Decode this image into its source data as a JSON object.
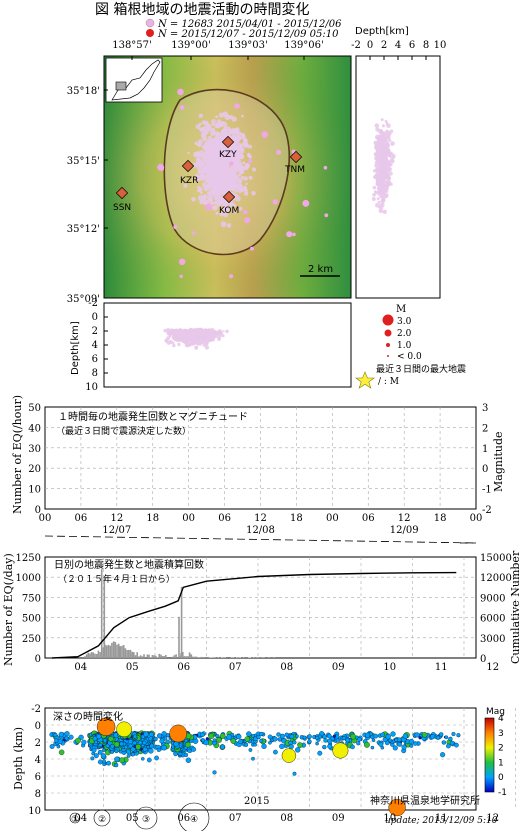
{
  "header": {
    "title": "図 箱根地域の地震活動の時間変化",
    "legend_lines": [
      {
        "label": "N = 12683 2015/04/01 - 2015/12/06",
        "color": "#e8b5e0"
      },
      {
        "label": "N =       2015/12/07 - 2015/12/09 05:10",
        "color": "#e02020"
      }
    ]
  },
  "map": {
    "lon_ticks": [
      "138°57'",
      "139°00'",
      "139°03'",
      "139°06'"
    ],
    "lat_ticks": [
      "35°18'",
      "35°15'",
      "35°12'",
      "35°09'"
    ],
    "stations": [
      "KZY",
      "KZR",
      "KOM",
      "TNM",
      "SSN"
    ],
    "scale_label": "2 km"
  },
  "depth_panels": {
    "right_title": "Depth[km]",
    "right_ticks": [
      "-2",
      "0",
      "2",
      "4",
      "6",
      "8",
      "10"
    ],
    "bottom_ylabel": "Depth[km]",
    "bottom_ticks": [
      "-2",
      "0",
      "2",
      "4",
      "6",
      "8",
      "10"
    ]
  },
  "mag_legend": {
    "title": "M",
    "items": [
      "3.0",
      "2.0",
      "1.0",
      "< 0.0"
    ],
    "max_eq_label": "最近３日間の最大地震",
    "max_eq_sub": "/ : M"
  },
  "hourly_chart": {
    "title": "１時間毎の地震発生回数とマグニチュード",
    "subtitle": "（最近３日間で震源決定した数）",
    "ylabel": "Number of EQ(/hour)",
    "y2label": "Magnitude",
    "yticks": [
      "50",
      "40",
      "30",
      "20",
      "10",
      "0"
    ],
    "y2ticks": [
      "3",
      "2",
      "1",
      "0",
      "-1",
      "-2"
    ],
    "xticks": [
      "00",
      "06",
      "12",
      "18",
      "00",
      "06",
      "12",
      "18",
      "00",
      "06",
      "12",
      "18",
      "00"
    ],
    "dates": [
      "12/07",
      "12/08",
      "12/09"
    ]
  },
  "daily_chart": {
    "title": "日別の地震発生数と地震積算回数",
    "subtitle": "（２０１５年４月１日から）",
    "ylabel": "Number of EQ(/day)",
    "y2label": "Cumulative Number",
    "yticks": [
      "1250",
      "1000",
      "750",
      "500",
      "250",
      "0"
    ],
    "y2ticks": [
      "15000",
      "12000",
      "9000",
      "6000",
      "3000",
      "0"
    ],
    "months": [
      "04",
      "05",
      "06",
      "07",
      "08",
      "09",
      "10",
      "11",
      "12"
    ]
  },
  "depth_time_chart": {
    "title": "深さの時間変化",
    "ylabel": "Depth (km)",
    "yticks": [
      "-2",
      "0",
      "2",
      "4",
      "6",
      "8",
      "10"
    ],
    "months": [
      "04",
      "05",
      "06",
      "07",
      "08",
      "09",
      "10",
      "11",
      "12"
    ],
    "year": "2015",
    "colorbar_title": "Mag",
    "colorbar_ticks": [
      "4",
      "3",
      "2",
      "1",
      "0",
      "-1"
    ],
    "size_legend": [
      "①",
      "②",
      "③",
      "④"
    ]
  },
  "footer": {
    "org": "神奈川県温泉地学研究所",
    "update": "update; 2015/12/09 5:10"
  },
  "chart_data": [
    {
      "type": "scatter",
      "title": "１時間毎の地震発生回数とマグニチュード",
      "xlabel": "",
      "ylabel": "Number of EQ(/hour)",
      "ylim": [
        0,
        50
      ],
      "series": []
    },
    {
      "type": "bar",
      "title": "日別の地震発生数と地震積算回数",
      "ylabel": "Number of EQ(/day)",
      "ylim": [
        0,
        1250
      ],
      "y2label": "Cumulative Number",
      "y2lim": [
        0,
        15000
      ],
      "months": [
        "04",
        "05",
        "06",
        "07",
        "08",
        "09",
        "10",
        "11",
        "12"
      ],
      "daily_peaks": [
        {
          "month_pos": 0.95,
          "value": 1100
        },
        {
          "month_pos": 1.0,
          "value": 1000
        },
        {
          "month_pos": 2.5,
          "value": 880
        },
        {
          "month_pos": 2.45,
          "value": 510
        }
      ],
      "cumulative": [
        {
          "month_pos": 0.0,
          "value": 0
        },
        {
          "month_pos": 0.5,
          "value": 200
        },
        {
          "month_pos": 0.9,
          "value": 1800
        },
        {
          "month_pos": 1.2,
          "value": 4500
        },
        {
          "month_pos": 1.5,
          "value": 6000
        },
        {
          "month_pos": 1.9,
          "value": 7000
        },
        {
          "month_pos": 2.2,
          "value": 7700
        },
        {
          "month_pos": 2.45,
          "value": 8500
        },
        {
          "month_pos": 2.55,
          "value": 10500
        },
        {
          "month_pos": 3.0,
          "value": 11400
        },
        {
          "month_pos": 4.0,
          "value": 12100
        },
        {
          "month_pos": 5.0,
          "value": 12400
        },
        {
          "month_pos": 6.0,
          "value": 12550
        },
        {
          "month_pos": 7.0,
          "value": 12650
        },
        {
          "month_pos": 7.85,
          "value": 12683
        }
      ]
    },
    {
      "type": "scatter",
      "title": "深さの時間変化",
      "ylabel": "Depth (km)",
      "ylim": [
        10,
        -2
      ],
      "months": [
        "04",
        "05",
        "06",
        "07",
        "08",
        "09",
        "10",
        "11",
        "12"
      ]
    }
  ]
}
